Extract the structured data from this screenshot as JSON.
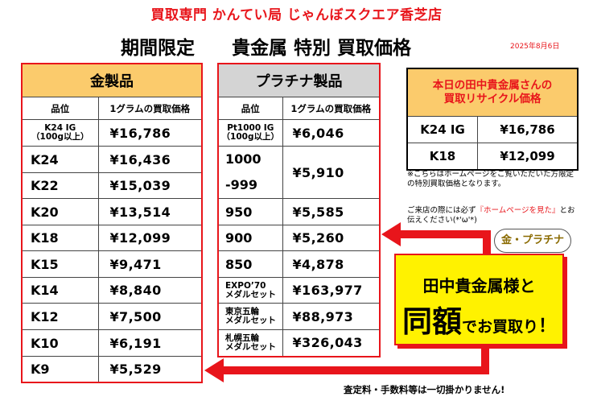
{
  "header": {
    "shop_name": "買取専門 かんてい局 じゃんぼスクエア香芝店",
    "headline": "期間限定　　貴金属 特別 買取価格",
    "date": "2025年8月6日"
  },
  "gold": {
    "title": "金製品",
    "col_grade": "品位",
    "col_price": "1グラムの買取価格",
    "rows": [
      {
        "grade": "K24 IG\n（100g以上）",
        "price": "¥16,786"
      },
      {
        "grade": "K24",
        "price": "¥16,436"
      },
      {
        "grade": "K22",
        "price": "¥15,039"
      },
      {
        "grade": "K20",
        "price": "¥13,514"
      },
      {
        "grade": "K18",
        "price": "¥12,099"
      },
      {
        "grade": "K15",
        "price": "¥9,471"
      },
      {
        "grade": "K14",
        "price": "¥8,840"
      },
      {
        "grade": "K12",
        "price": "¥7,500"
      },
      {
        "grade": "K10",
        "price": "¥6,191"
      },
      {
        "grade": "K9",
        "price": "¥5,529"
      }
    ]
  },
  "platinum": {
    "title": "プラチナ製品",
    "col_grade": "品位",
    "col_price": "1グラムの買取価格",
    "rows": [
      {
        "grade": "Pt1000 IG\n（100g以上）",
        "price": "¥6,046"
      },
      {
        "grade": "1000\n-999",
        "price": "¥5,910"
      },
      {
        "grade": "950",
        "price": "¥5,585"
      },
      {
        "grade": "900",
        "price": "¥5,260"
      },
      {
        "grade": "850",
        "price": "¥4,878"
      },
      {
        "grade": "EXPO’70\nメダルセット",
        "price": "¥163,977"
      },
      {
        "grade": "東京五輪\nメダルセット",
        "price": "¥88,973"
      },
      {
        "grade": "札幌五輪\nメダルセット",
        "price": "¥326,043"
      }
    ]
  },
  "tanaka": {
    "title": "本日の田中貴金属さんの\n買取リサイクル価格",
    "rows": [
      {
        "grade": "K24 IG",
        "price": "¥16,786"
      },
      {
        "grade": "K18",
        "price": "¥12,099"
      }
    ]
  },
  "notes": {
    "line1": "※こちらはホームページをご覧いただいた方限定の特別買取価格となります。",
    "line2_pre": "ご来店の際には必ず",
    "line2_red": "『ホームページを見た』",
    "line2_post": "とお伝えください(*'ω'*)"
  },
  "callout": {
    "line1": "田中貴金属様と",
    "big": "同額",
    "rest": "でお買取り",
    "exclaim": "！",
    "bubble": "金・プラチナ"
  },
  "footer": "査定料・手数料等は一切掛かりません!",
  "colors": {
    "red": "#e8151b",
    "gold": "#fbcb6c",
    "gray": "#d4d4d4",
    "yellow": "#fff200"
  }
}
